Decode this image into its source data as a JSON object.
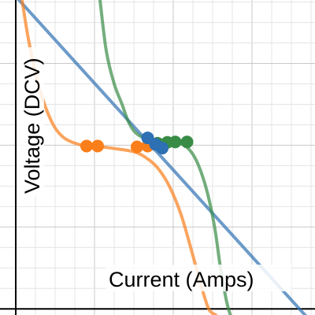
{
  "chart_data": {
    "type": "line",
    "title": "",
    "xlabel": "Current (Amps)",
    "ylabel": "Voltage (DCV)",
    "xlim": [
      -0.4,
      7.6
    ],
    "ylim": [
      -0.15,
      7.55
    ],
    "grid": true,
    "legend": "none",
    "series": [
      {
        "color": "#2d70b3",
        "x": [
          -0.4,
          7.6
        ],
        "y": [
          8.06,
          -0.42
        ]
      },
      {
        "color": "#fa7e19",
        "x": [
          0.16,
          0.34,
          0.6,
          0.9,
          1.2,
          1.6,
          2.0,
          2.5,
          3.0,
          3.3,
          3.6,
          3.9,
          4.2,
          4.5,
          4.7,
          4.9,
          5.08
        ],
        "y": [
          7.55,
          6.5,
          5.4,
          4.6,
          4.2,
          4.02,
          3.98,
          3.92,
          3.84,
          3.7,
          3.45,
          3.0,
          2.3,
          1.3,
          0.6,
          0.0,
          -0.15
        ]
      },
      {
        "color": "#388c46",
        "x": [
          2.14,
          2.3,
          2.5,
          2.7,
          2.85,
          3.0,
          3.2,
          3.45,
          3.75,
          4.05,
          4.35,
          4.6,
          4.85,
          5.05,
          5.2,
          5.35,
          5.45
        ],
        "y": [
          7.55,
          6.3,
          5.5,
          5.0,
          4.6,
          4.35,
          4.2,
          4.12,
          4.08,
          4.08,
          3.95,
          3.6,
          2.9,
          2.0,
          1.0,
          0.2,
          -0.15
        ]
      },
      {
        "color": "#fa7e19",
        "mode": "markers",
        "x": [
          1.8,
          2.08,
          3.08,
          3.35,
          3.6
        ],
        "y": [
          3.98,
          3.98,
          3.96,
          3.98,
          4.03
        ]
      },
      {
        "color": "#388c46",
        "mode": "markers",
        "x": [
          3.6,
          3.85,
          4.05,
          4.35
        ],
        "y": [
          4.05,
          4.07,
          4.08,
          4.08
        ]
      },
      {
        "color": "#2d70b3",
        "mode": "markers",
        "x": [
          3.35,
          3.55,
          3.72
        ],
        "y": [
          4.18,
          4.02,
          3.93
        ]
      }
    ]
  }
}
